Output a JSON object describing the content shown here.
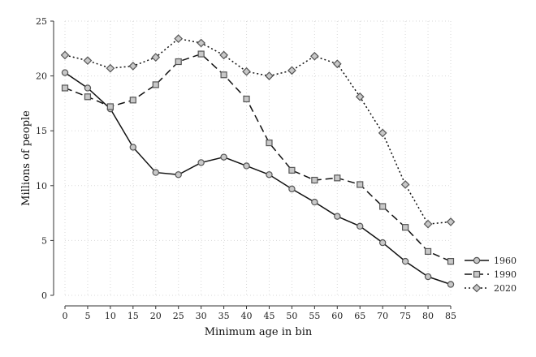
{
  "chart_data": {
    "type": "line",
    "xlabel": "Minimum age in bin",
    "ylabel": "Millions of people",
    "x": [
      0,
      5,
      10,
      15,
      20,
      25,
      30,
      35,
      40,
      45,
      50,
      55,
      60,
      65,
      70,
      75,
      80,
      85
    ],
    "xlim": [
      0,
      85
    ],
    "ylim": [
      0,
      25
    ],
    "xticks": [
      "0",
      "5",
      "10",
      "15",
      "20",
      "25",
      "30",
      "35",
      "40",
      "45",
      "50",
      "55",
      "60",
      "65",
      "70",
      "75",
      "80",
      "85"
    ],
    "yticks": [
      "0",
      "5",
      "10",
      "15",
      "20",
      "25"
    ],
    "grid": "horizontal and vertical dotted",
    "legend_position": "right, bottom",
    "series": [
      {
        "name": "1960",
        "marker": "circle",
        "line_style": "solid",
        "values": [
          20.3,
          18.9,
          17.0,
          13.5,
          11.2,
          11.0,
          12.1,
          12.6,
          11.8,
          11.0,
          9.7,
          8.5,
          7.2,
          6.3,
          4.8,
          3.1,
          1.7,
          1.0
        ]
      },
      {
        "name": "1990",
        "marker": "square",
        "line_style": "dashed",
        "values": [
          18.9,
          18.1,
          17.2,
          17.8,
          19.2,
          21.3,
          22.0,
          20.1,
          17.9,
          13.9,
          11.4,
          10.5,
          10.7,
          10.1,
          8.1,
          6.2,
          4.0,
          3.1
        ]
      },
      {
        "name": "2020",
        "marker": "diamond",
        "line_style": "dotted",
        "values": [
          21.9,
          21.4,
          20.7,
          20.9,
          21.7,
          23.4,
          23.0,
          21.9,
          20.4,
          20.0,
          20.5,
          21.8,
          21.1,
          18.1,
          14.8,
          10.1,
          6.5,
          6.7
        ]
      }
    ]
  }
}
